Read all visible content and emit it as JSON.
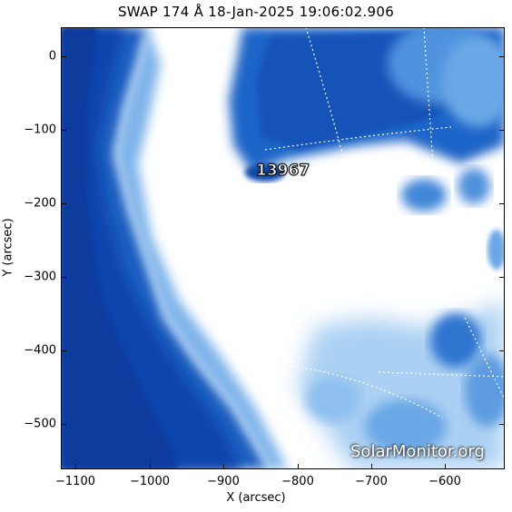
{
  "image": {
    "title": "SWAP 174 Å 18-Jan-2025 19:06:02.906",
    "xlabel": "X (arcsec)",
    "ylabel": "Y (arcsec)",
    "x_ticks": [
      "−1100",
      "−1000",
      "−900",
      "−800",
      "−700",
      "−600"
    ],
    "y_ticks": [
      "0",
      "−100",
      "−200",
      "−300",
      "−400",
      "−500"
    ],
    "active_region_label": "13967",
    "watermark": "SolarMonitor.org",
    "colors": {
      "disk": "#ffffff",
      "corona_dark": "#0a3fa8",
      "corona_mid": "#2f7ad6",
      "corona_light": "#9cc8f0"
    }
  }
}
